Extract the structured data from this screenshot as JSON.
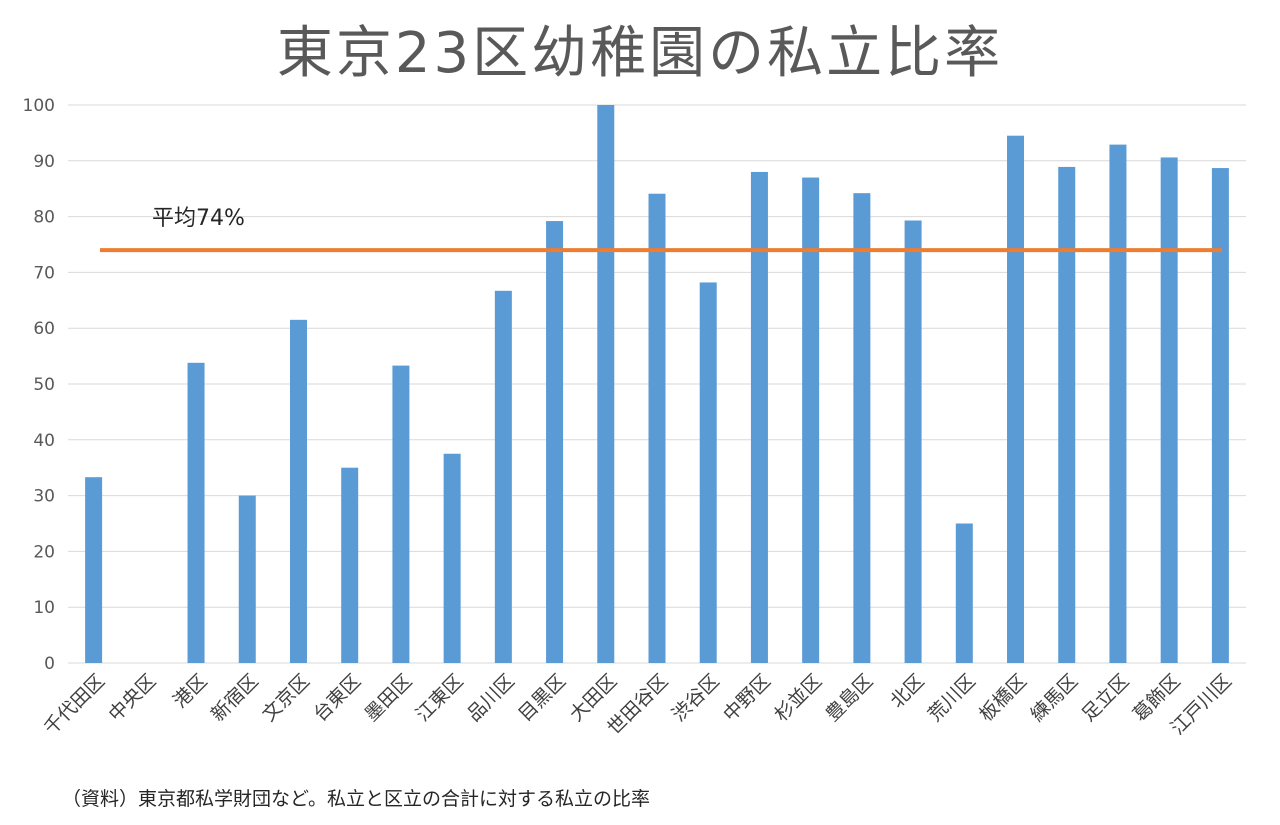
{
  "chart_data": {
    "type": "bar",
    "title": "東京23区幼稚園の私立比率",
    "categories": [
      "千代田区",
      "中央区",
      "港区",
      "新宿区",
      "文京区",
      "台東区",
      "墨田区",
      "江東区",
      "品川区",
      "目黒区",
      "大田区",
      "世田谷区",
      "渋谷区",
      "中野区",
      "杉並区",
      "豊島区",
      "北区",
      "荒川区",
      "板橋区",
      "練馬区",
      "足立区",
      "葛飾区",
      "江戸川区"
    ],
    "series": [
      {
        "values": [
          33.3,
          0,
          53.8,
          30.0,
          61.5,
          35.0,
          53.3,
          37.5,
          66.7,
          79.2,
          100,
          84.1,
          68.2,
          88.0,
          87.0,
          84.2,
          79.3,
          25.0,
          94.5,
          88.9,
          92.9,
          90.6,
          88.7
        ]
      }
    ],
    "ylim": [
      0,
      100
    ],
    "yticks": [
      0,
      10,
      20,
      30,
      40,
      50,
      60,
      70,
      80,
      90,
      100
    ],
    "grid": true,
    "reference_line": {
      "value": 74,
      "label": "平均74%"
    },
    "colors": {
      "bar": "#5b9bd5",
      "reference_line": "#ed7d31",
      "grid": "#d9d9d9"
    }
  },
  "source_note": "（資料）東京都私学財団など。私立と区立の合計に対する私立の比率"
}
